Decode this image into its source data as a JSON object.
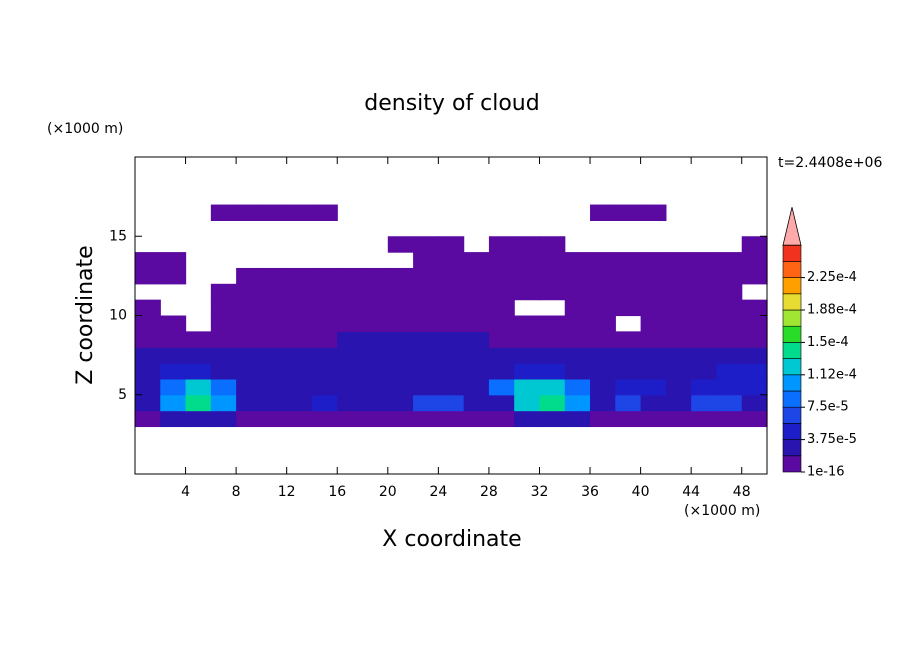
{
  "chart_data": {
    "type": "contour",
    "title": "density of cloud",
    "x_label": "X coordinate",
    "y_label": "Z coordinate",
    "x_unit": "(×1000 m)",
    "y_unit": "(×1000 m)",
    "time_label": "t=2.4408e+06",
    "xlim": [
      0,
      50
    ],
    "ylim": [
      0,
      20
    ],
    "xticks": [
      4,
      8,
      12,
      16,
      20,
      24,
      28,
      32,
      36,
      40,
      44,
      48
    ],
    "yticks": [
      5,
      10,
      15
    ],
    "x": [
      1,
      3,
      5,
      7,
      9,
      11,
      13,
      15,
      17,
      19,
      21,
      23,
      25,
      27,
      29,
      31,
      33,
      35,
      37,
      39,
      41,
      43,
      45,
      47,
      49
    ],
    "y": [
      3.5,
      4.5,
      5.5,
      6.5,
      7.5,
      8.5,
      9.5,
      10.5,
      11.5,
      12.5,
      13.5,
      14.5,
      15.5,
      16.5
    ],
    "z": [
      [
        1e-16,
        2e-05,
        2e-05,
        2e-05,
        1e-16,
        1e-16,
        1e-16,
        1e-16,
        1e-16,
        1e-16,
        1e-16,
        1e-16,
        1e-16,
        1e-16,
        1e-16,
        2e-05,
        2e-05,
        2e-05,
        1e-16,
        1e-16,
        1e-16,
        1e-16,
        1e-16,
        1e-16,
        1e-16
      ],
      [
        2e-05,
        0.0001,
        0.00014,
        0.0001,
        2e-05,
        2e-05,
        2e-05,
        5e-05,
        2e-05,
        2e-05,
        2e-05,
        6e-05,
        6e-05,
        2e-05,
        2e-05,
        0.00012,
        0.00014,
        0.0001,
        2e-05,
        6e-05,
        2e-05,
        2e-05,
        7e-05,
        7e-05,
        2e-05
      ],
      [
        3e-05,
        8e-05,
        0.00012,
        8e-05,
        3e-05,
        3e-05,
        3e-05,
        3e-05,
        3e-05,
        3e-05,
        3e-05,
        3e-05,
        3e-05,
        3e-05,
        8e-05,
        0.00012,
        0.00012,
        8e-05,
        3e-05,
        5e-05,
        5e-05,
        3e-05,
        5e-05,
        5e-05,
        4e-05
      ],
      [
        2e-05,
        4e-05,
        4e-05,
        2e-05,
        2e-05,
        2e-05,
        2e-05,
        2e-05,
        2e-05,
        2e-05,
        2e-05,
        2e-05,
        2e-05,
        2e-05,
        2e-05,
        4e-05,
        4e-05,
        2e-05,
        2e-05,
        2e-05,
        2e-05,
        2e-05,
        2e-05,
        4e-05,
        4e-05
      ],
      [
        2e-05,
        2e-05,
        2e-05,
        2e-05,
        2e-05,
        2e-05,
        2e-05,
        2e-05,
        2e-05,
        2e-05,
        2e-05,
        2e-05,
        2e-05,
        2e-05,
        2e-05,
        2e-05,
        2e-05,
        2e-05,
        2e-05,
        2e-05,
        2e-05,
        2e-05,
        2e-05,
        2e-05,
        2e-05
      ],
      [
        1e-16,
        1e-16,
        1e-16,
        1e-16,
        1e-16,
        1e-16,
        1e-16,
        1e-16,
        2e-05,
        2e-05,
        2e-05,
        2e-05,
        2e-05,
        2e-05,
        1e-16,
        1e-16,
        1e-16,
        1e-16,
        1e-16,
        1e-16,
        1e-16,
        1e-16,
        1e-16,
        1e-16,
        1e-16
      ],
      [
        1e-16,
        1e-16,
        null,
        1e-16,
        1e-16,
        1e-16,
        1e-16,
        1e-16,
        1e-16,
        1e-16,
        1e-16,
        1e-16,
        1e-16,
        1e-16,
        1e-16,
        1e-16,
        1e-16,
        1e-16,
        1e-16,
        null,
        1e-16,
        1e-16,
        1e-16,
        1e-16,
        1e-16
      ],
      [
        1e-16,
        null,
        null,
        1e-16,
        1e-16,
        1e-16,
        1e-16,
        1e-16,
        1e-16,
        1e-16,
        1e-16,
        1e-16,
        1e-16,
        1e-16,
        1e-16,
        null,
        null,
        1e-16,
        1e-16,
        1e-16,
        1e-16,
        1e-16,
        1e-16,
        1e-16,
        1e-16
      ],
      [
        null,
        null,
        null,
        1e-16,
        1e-16,
        1e-16,
        1e-16,
        1e-16,
        1e-16,
        1e-16,
        1e-16,
        1e-16,
        1e-16,
        1e-16,
        1e-16,
        1e-16,
        1e-16,
        1e-16,
        1e-16,
        1e-16,
        1e-16,
        1e-16,
        1e-16,
        1e-16,
        null
      ],
      [
        1e-16,
        1e-16,
        null,
        null,
        1e-16,
        1e-16,
        1e-16,
        1e-16,
        1e-16,
        1e-16,
        1e-16,
        1e-16,
        1e-16,
        1e-16,
        1e-16,
        1e-16,
        1e-16,
        1e-16,
        1e-16,
        1e-16,
        1e-16,
        1e-16,
        1e-16,
        1e-16,
        1e-16
      ],
      [
        1e-16,
        1e-16,
        null,
        null,
        null,
        null,
        null,
        null,
        null,
        null,
        null,
        1e-16,
        1e-16,
        1e-16,
        1e-16,
        1e-16,
        1e-16,
        1e-16,
        1e-16,
        1e-16,
        1e-16,
        1e-16,
        1e-16,
        1e-16,
        1e-16
      ],
      [
        null,
        null,
        null,
        null,
        null,
        null,
        null,
        null,
        null,
        null,
        1e-16,
        1e-16,
        1e-16,
        null,
        1e-16,
        1e-16,
        1e-16,
        null,
        null,
        null,
        null,
        null,
        null,
        null,
        1e-16
      ],
      [
        null,
        null,
        null,
        null,
        null,
        null,
        null,
        null,
        null,
        null,
        null,
        null,
        null,
        null,
        null,
        null,
        null,
        null,
        null,
        null,
        null,
        null,
        null,
        null,
        null
      ],
      [
        null,
        null,
        null,
        1e-16,
        1e-16,
        1e-16,
        1e-16,
        1e-16,
        null,
        null,
        null,
        null,
        null,
        null,
        null,
        null,
        null,
        null,
        1e-16,
        1e-16,
        1e-16,
        null,
        null,
        null,
        null
      ]
    ],
    "levels": [
      1e-16,
      1.875e-05,
      3.75e-05,
      5.625e-05,
      7.5e-05,
      9.375e-05,
      0.0001125,
      0.00013125,
      0.00015,
      0.00016875,
      0.0001875,
      0.00020625,
      0.000225,
      0.00024375,
      0.0002625
    ],
    "colors": [
      "#5a0aa0",
      "#2a14b0",
      "#1e1ec8",
      "#1e46e6",
      "#0a6eff",
      "#0096ff",
      "#00c8d2",
      "#00dc8c",
      "#28dc28",
      "#a0e632",
      "#e6dc32",
      "#ffa000",
      "#ff6414",
      "#f0321e"
    ],
    "extend_color": "#ffaaaa",
    "colorbar_ticks": [
      1e-16,
      {
        "value": 3.75e-05,
        "label": "3.75e-5"
      },
      {
        "value": 7.5e-05,
        "label": "7.5e-5"
      },
      {
        "value": 0.0001125,
        "label": "1.12e-4"
      },
      {
        "value": 0.00015,
        "label": "1.5e-4"
      },
      {
        "value": 0.0001875,
        "label": "1.88e-4"
      },
      {
        "value": 0.000225,
        "label": "2.25e-4"
      }
    ]
  }
}
